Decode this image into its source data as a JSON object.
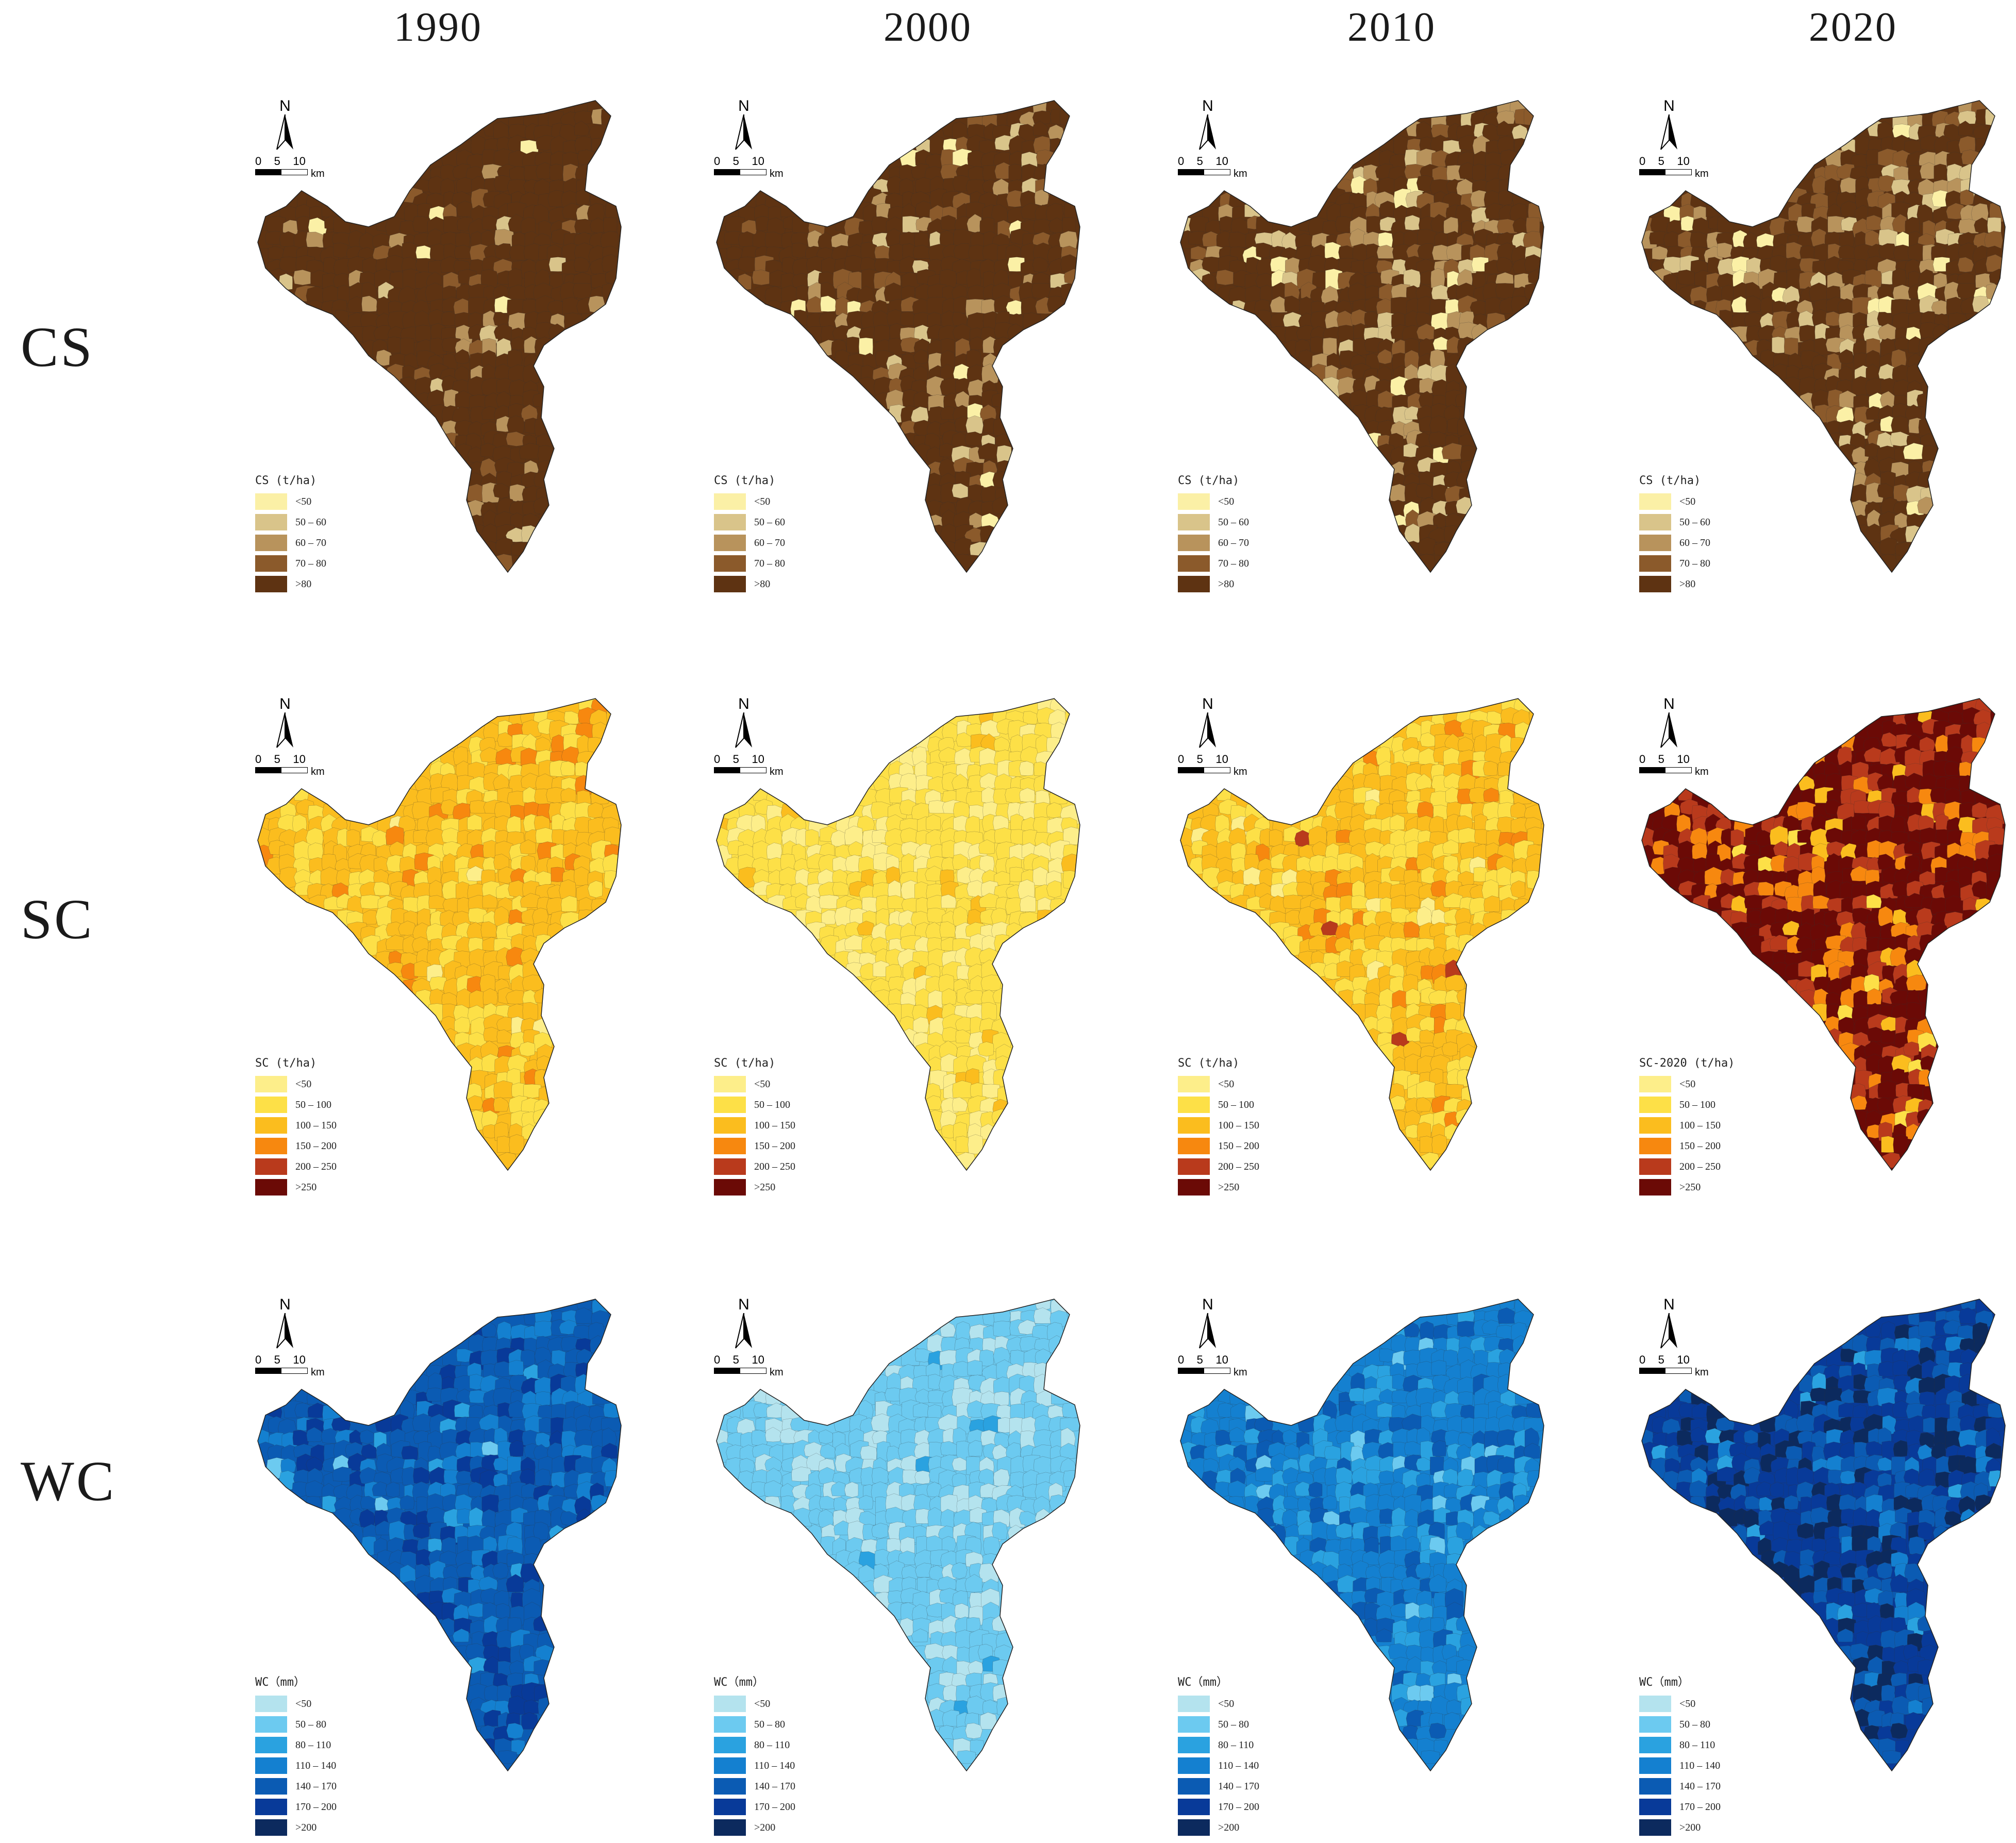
{
  "years": [
    "1990",
    "2000",
    "2010",
    "2020"
  ],
  "rows": [
    {
      "label": "CS",
      "legend_titles": [
        "CS (t/ha)",
        "CS (t/ha)",
        "CS (t/ha)",
        "CS (t/ha)"
      ],
      "classes": [
        {
          "label": "<50",
          "color": "#fbf0a6"
        },
        {
          "label": "50 – 60",
          "color": "#d9c48a"
        },
        {
          "label": "60 – 70",
          "color": "#b8935c"
        },
        {
          "label": "70 – 80",
          "color": "#8b5a2b"
        },
        {
          "label": ">80",
          "color": "#5e3312"
        }
      ],
      "dominant": [
        4,
        4,
        4,
        4
      ],
      "mix": [
        [
          0.01,
          0.02,
          0.06,
          0.06,
          0.85
        ],
        [
          0.03,
          0.06,
          0.1,
          0.12,
          0.69
        ],
        [
          0.04,
          0.08,
          0.12,
          0.14,
          0.62
        ],
        [
          0.05,
          0.09,
          0.14,
          0.16,
          0.56
        ]
      ]
    },
    {
      "label": "SC",
      "legend_titles": [
        "SC (t/ha)",
        "SC (t/ha)",
        "SC (t/ha)",
        "SC-2020 (t/ha)"
      ],
      "classes": [
        {
          "label": "<50",
          "color": "#fdee8a"
        },
        {
          "label": "50 – 100",
          "color": "#fde047"
        },
        {
          "label": "100 – 150",
          "color": "#fbbd1e"
        },
        {
          "label": "150 – 200",
          "color": "#f7880f"
        },
        {
          "label": "200 – 250",
          "color": "#b93a1c"
        },
        {
          ">250": "",
          "label": ">250",
          "color": "#6b0a06"
        }
      ],
      "dominant": [
        2,
        1,
        2,
        5
      ],
      "mix": [
        [
          0.02,
          0.25,
          0.65,
          0.08,
          0,
          0
        ],
        [
          0.35,
          0.6,
          0.05,
          0,
          0,
          0
        ],
        [
          0.04,
          0.38,
          0.5,
          0.07,
          0.01,
          0
        ],
        [
          0,
          0.02,
          0.05,
          0.15,
          0.3,
          0.48
        ]
      ]
    },
    {
      "label": "WC",
      "legend_titles": [
        "WC（mm）",
        "WC（mm）",
        "WC（mm）",
        "WC（mm）"
      ],
      "classes": [
        {
          "label": "<50",
          "color": "#b4e3ee"
        },
        {
          "label": "50 – 80",
          "color": "#6ccaf0"
        },
        {
          "label": "80 – 110",
          "color": "#2aa2e0"
        },
        {
          "label": "110 – 140",
          "color": "#1480d0"
        },
        {
          "label": "140 – 170",
          "color": "#0b5bb3"
        },
        {
          "label": "170 – 200",
          "color": "#083a99"
        },
        {
          "label": ">200",
          "color": "#0c2a5e"
        }
      ],
      "dominant": [
        4,
        1,
        3,
        5
      ],
      "mix": [
        [
          0,
          0.01,
          0.04,
          0.2,
          0.55,
          0.2,
          0
        ],
        [
          0.3,
          0.68,
          0.02,
          0,
          0,
          0,
          0
        ],
        [
          0,
          0.03,
          0.22,
          0.55,
          0.2,
          0,
          0
        ],
        [
          0,
          0,
          0.02,
          0.08,
          0.3,
          0.4,
          0.2
        ]
      ]
    }
  ],
  "north_letter": "N",
  "scale": {
    "ticks": "0    5    10",
    "unit": "km"
  },
  "row_title_positions_note": ""
}
